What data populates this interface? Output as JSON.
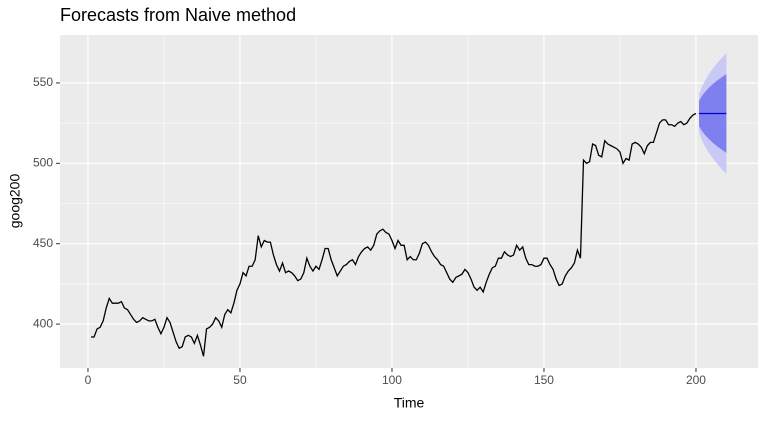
{
  "chart_data": {
    "type": "forecast-line",
    "title": "Forecasts from Naive method",
    "x_label": "Time",
    "y_label": "goog200",
    "xlim": [
      -9.2,
      220.4
    ],
    "ylim": [
      372.7,
      579.8
    ],
    "xticks": [
      0,
      50,
      100,
      150,
      200
    ],
    "yticks": [
      400,
      450,
      500,
      550
    ],
    "grid": true,
    "series": [
      {
        "color": "#000000",
        "x": [
          1,
          2,
          3,
          4,
          5,
          6,
          7,
          8,
          9,
          10,
          11,
          12,
          13,
          14,
          15,
          16,
          17,
          18,
          19,
          20,
          21,
          22,
          23,
          24,
          25,
          26,
          27,
          28,
          29,
          30,
          31,
          32,
          33,
          34,
          35,
          36,
          37,
          38,
          39,
          40,
          41,
          42,
          43,
          44,
          45,
          46,
          47,
          48,
          49,
          50,
          51,
          52,
          53,
          54,
          55,
          56,
          57,
          58,
          59,
          60,
          61,
          62,
          63,
          64,
          65,
          66,
          67,
          68,
          69,
          70,
          71,
          72,
          73,
          74,
          75,
          76,
          77,
          78,
          79,
          80,
          81,
          82,
          83,
          84,
          85,
          86,
          87,
          88,
          89,
          90,
          91,
          92,
          93,
          94,
          95,
          96,
          97,
          98,
          99,
          100,
          101,
          102,
          103,
          104,
          105,
          106,
          107,
          108,
          109,
          110,
          111,
          112,
          113,
          114,
          115,
          116,
          117,
          118,
          119,
          120,
          121,
          122,
          123,
          124,
          125,
          126,
          127,
          128,
          129,
          130,
          131,
          132,
          133,
          134,
          135,
          136,
          137,
          138,
          139,
          140,
          141,
          142,
          143,
          144,
          145,
          146,
          147,
          148,
          149,
          150,
          151,
          152,
          153,
          154,
          155,
          156,
          157,
          158,
          159,
          160,
          161,
          162,
          163,
          164,
          165,
          166,
          167,
          168,
          169,
          170,
          171,
          172,
          173,
          174,
          175,
          176,
          177,
          178,
          179,
          180,
          181,
          182,
          183,
          184,
          185,
          186,
          187,
          188,
          189,
          190,
          191,
          192,
          193,
          194,
          195,
          196,
          197,
          198,
          199,
          200
        ],
        "values": [
          392,
          392,
          397,
          398,
          402,
          410,
          416,
          413,
          413,
          413,
          414,
          410,
          409,
          406,
          403,
          401,
          402,
          404,
          403,
          402,
          402,
          403,
          398,
          394,
          398,
          404,
          401,
          395,
          389,
          385,
          386,
          392,
          393,
          392,
          388,
          393,
          387,
          380,
          397,
          398,
          400,
          404,
          402,
          398,
          406,
          409,
          407,
          413,
          421,
          425,
          432,
          430,
          436,
          436,
          440,
          455,
          448,
          452,
          451,
          451,
          443,
          437,
          433,
          438,
          432,
          433,
          432,
          430,
          427,
          428,
          432,
          441,
          436,
          433,
          436,
          434,
          440,
          447,
          447,
          440,
          435,
          430,
          433,
          436,
          437,
          439,
          440,
          437,
          442,
          445,
          447,
          448,
          446,
          449,
          456,
          458,
          459,
          457,
          456,
          452,
          447,
          452,
          449,
          449,
          440,
          442,
          440,
          440,
          444,
          450,
          451,
          449,
          445,
          442,
          440,
          437,
          436,
          432,
          428,
          426,
          429,
          430,
          431,
          434,
          432,
          428,
          423,
          421,
          423,
          420,
          426,
          431,
          435,
          436,
          441,
          441,
          445,
          443,
          442,
          443,
          449,
          446,
          448,
          441,
          437,
          437,
          436,
          436,
          437,
          441,
          441,
          437,
          434,
          428,
          424,
          425,
          430,
          433,
          435,
          438,
          446,
          441,
          502,
          500,
          501,
          512,
          511,
          505,
          504,
          514,
          512,
          511,
          510,
          509,
          507,
          500,
          503,
          502,
          512,
          513,
          512,
          510,
          506,
          511,
          513,
          513,
          519,
          525,
          527,
          527,
          524,
          524,
          523,
          525,
          526,
          524,
          525,
          528,
          530,
          531
        ]
      }
    ],
    "forecast": {
      "x": [
        201,
        202,
        203,
        204,
        205,
        206,
        207,
        208,
        209,
        210
      ],
      "mean": [
        531,
        531,
        531,
        531,
        531,
        531,
        531,
        531,
        531,
        531
      ],
      "lower_80": [
        523.2,
        520.0,
        517.6,
        515.5,
        513.7,
        512.0,
        510.5,
        509.1,
        507.7,
        506.5
      ],
      "upper_80": [
        538.8,
        542.0,
        544.4,
        546.5,
        548.3,
        550.0,
        551.5,
        552.9,
        554.3,
        555.5
      ],
      "lower_95": [
        519.1,
        514.2,
        510.5,
        507.3,
        504.5,
        502.0,
        499.6,
        497.5,
        495.4,
        493.5
      ],
      "upper_95": [
        542.9,
        547.8,
        551.5,
        554.7,
        557.5,
        560.0,
        562.4,
        564.5,
        566.6,
        568.5
      ],
      "mean_color": "#0000cc",
      "color_80": "#7f7ff0",
      "color_95": "#c9c9f6"
    }
  }
}
